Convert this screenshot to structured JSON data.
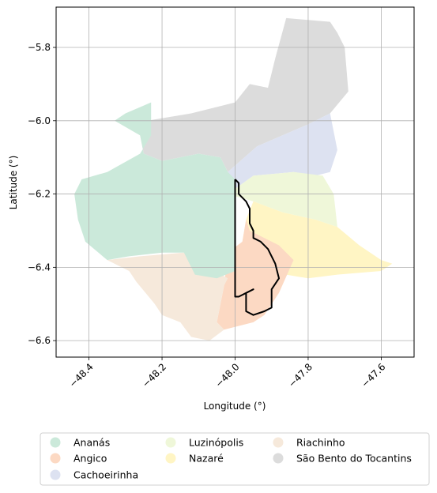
{
  "axes": {
    "xlabel": "Longitude (°)",
    "ylabel": "Latitude (°)",
    "xlim": [
      -48.49,
      -47.51
    ],
    "ylim": [
      -6.645,
      -5.69
    ],
    "x_ticks": [
      {
        "value": -48.4,
        "label": "−48.4"
      },
      {
        "value": -48.2,
        "label": "−48.2"
      },
      {
        "value": -48.0,
        "label": "−48.0"
      },
      {
        "value": -47.8,
        "label": "−47.8"
      },
      {
        "value": -47.6,
        "label": "−47.6"
      }
    ],
    "y_ticks": [
      {
        "value": -5.8,
        "label": "−5.8"
      },
      {
        "value": -6.0,
        "label": "−6.0"
      },
      {
        "value": -6.2,
        "label": "−6.2"
      },
      {
        "value": -6.4,
        "label": "−6.4"
      },
      {
        "value": -6.6,
        "label": "−6.6"
      }
    ],
    "grid": true
  },
  "legend": {
    "placement": "below",
    "items": [
      {
        "name": "Ananás",
        "color": "#cbe9da"
      },
      {
        "name": "Angico",
        "color": "#fcd9c3"
      },
      {
        "name": "Cachoeirinha",
        "color": "#dde2f1"
      },
      {
        "name": "Luzinópolis",
        "color": "#eff7d9"
      },
      {
        "name": "Nazaré",
        "color": "#fff5c4"
      },
      {
        "name": "Riachinho",
        "color": "#f6e9db"
      },
      {
        "name": "São Bento do Tocantins",
        "color": "#dcdcdc"
      }
    ]
  },
  "regions": [
    {
      "name": "São Bento do Tocantins",
      "color": "#dcdcdc",
      "lonlat": [
        [
          -47.86,
          -5.72
        ],
        [
          -47.74,
          -5.73
        ],
        [
          -47.72,
          -5.76
        ],
        [
          -47.7,
          -5.8
        ],
        [
          -47.69,
          -5.92
        ],
        [
          -47.74,
          -5.98
        ],
        [
          -47.8,
          -6.01
        ],
        [
          -47.94,
          -6.07
        ],
        [
          -48.02,
          -6.14
        ],
        [
          -48.04,
          -6.1
        ],
        [
          -48.1,
          -6.09
        ],
        [
          -48.2,
          -6.11
        ],
        [
          -48.25,
          -6.09
        ],
        [
          -48.26,
          -6.04
        ],
        [
          -48.24,
          -6.0
        ],
        [
          -48.12,
          -5.98
        ],
        [
          -48.04,
          -5.96
        ],
        [
          -48.0,
          -5.95
        ],
        [
          -47.96,
          -5.9
        ],
        [
          -47.91,
          -5.91
        ],
        [
          -47.89,
          -5.83
        ]
      ]
    },
    {
      "name": "Cachoeirinha",
      "color": "#dde2f1",
      "lonlat": [
        [
          -47.94,
          -6.07
        ],
        [
          -47.8,
          -6.01
        ],
        [
          -47.74,
          -5.98
        ],
        [
          -47.72,
          -6.08
        ],
        [
          -47.74,
          -6.14
        ],
        [
          -47.78,
          -6.15
        ],
        [
          -47.84,
          -6.14
        ],
        [
          -47.95,
          -6.15
        ],
        [
          -48.02,
          -6.2
        ],
        [
          -48.02,
          -6.14
        ]
      ]
    },
    {
      "name": "Luzinópolis",
      "color": "#eff7d9",
      "lonlat": [
        [
          -48.02,
          -6.2
        ],
        [
          -47.95,
          -6.15
        ],
        [
          -47.84,
          -6.14
        ],
        [
          -47.76,
          -6.15
        ],
        [
          -47.73,
          -6.2
        ],
        [
          -47.72,
          -6.29
        ],
        [
          -47.78,
          -6.27
        ],
        [
          -47.87,
          -6.25
        ],
        [
          -47.95,
          -6.22
        ]
      ]
    },
    {
      "name": "Nazaré",
      "color": "#fff5c4",
      "lonlat": [
        [
          -47.95,
          -6.22
        ],
        [
          -47.87,
          -6.25
        ],
        [
          -47.78,
          -6.27
        ],
        [
          -47.72,
          -6.29
        ],
        [
          -47.66,
          -6.34
        ],
        [
          -47.6,
          -6.38
        ],
        [
          -47.57,
          -6.39
        ],
        [
          -47.6,
          -6.41
        ],
        [
          -47.72,
          -6.42
        ],
        [
          -47.8,
          -6.43
        ],
        [
          -47.86,
          -6.42
        ],
        [
          -47.92,
          -6.42
        ],
        [
          -47.98,
          -6.33
        ],
        [
          -47.97,
          -6.27
        ]
      ]
    },
    {
      "name": "Angico",
      "color": "#fcd9c3",
      "lonlat": [
        [
          -47.97,
          -6.27
        ],
        [
          -47.98,
          -6.33
        ],
        [
          -48.02,
          -6.36
        ],
        [
          -48.03,
          -6.45
        ],
        [
          -48.05,
          -6.55
        ],
        [
          -48.03,
          -6.57
        ],
        [
          -47.95,
          -6.55
        ],
        [
          -47.92,
          -6.53
        ],
        [
          -47.88,
          -6.47
        ],
        [
          -47.84,
          -6.38
        ],
        [
          -47.88,
          -6.34
        ],
        [
          -47.92,
          -6.32
        ],
        [
          -47.96,
          -6.3
        ]
      ]
    },
    {
      "name": "Riachinho",
      "color": "#f6e9db",
      "lonlat": [
        [
          -48.35,
          -6.38
        ],
        [
          -48.26,
          -6.37
        ],
        [
          -48.14,
          -6.36
        ],
        [
          -48.02,
          -6.43
        ],
        [
          -48.03,
          -6.45
        ],
        [
          -48.05,
          -6.55
        ],
        [
          -48.03,
          -6.57
        ],
        [
          -48.07,
          -6.6
        ],
        [
          -48.12,
          -6.59
        ],
        [
          -48.15,
          -6.55
        ],
        [
          -48.2,
          -6.53
        ],
        [
          -48.22,
          -6.5
        ],
        [
          -48.27,
          -6.44
        ],
        [
          -48.29,
          -6.41
        ]
      ]
    },
    {
      "name": "Ananás",
      "color": "#cbe9da",
      "lonlat": [
        [
          -48.33,
          -6.0
        ],
        [
          -48.3,
          -5.98
        ],
        [
          -48.23,
          -5.95
        ],
        [
          -48.23,
          -6.04
        ],
        [
          -48.26,
          -6.09
        ],
        [
          -48.35,
          -6.14
        ],
        [
          -48.42,
          -6.16
        ],
        [
          -48.44,
          -6.2
        ],
        [
          -48.43,
          -6.27
        ],
        [
          -48.41,
          -6.33
        ],
        [
          -48.35,
          -6.38
        ],
        [
          -48.29,
          -6.37
        ],
        [
          -48.2,
          -6.36
        ],
        [
          -48.14,
          -6.36
        ],
        [
          -48.11,
          -6.42
        ],
        [
          -48.05,
          -6.43
        ],
        [
          -48.0,
          -6.41
        ],
        [
          -48.0,
          -6.16
        ],
        [
          -48.02,
          -6.14
        ],
        [
          -48.04,
          -6.1
        ],
        [
          -48.1,
          -6.09
        ],
        [
          -48.2,
          -6.11
        ],
        [
          -48.25,
          -6.09
        ],
        [
          -48.26,
          -6.04
        ]
      ]
    }
  ],
  "boundary": {
    "color": "#000000",
    "lonlat": [
      [
        -48.0,
        -6.16
      ],
      [
        -47.99,
        -6.17
      ],
      [
        -47.99,
        -6.2
      ],
      [
        -47.97,
        -6.22
      ],
      [
        -47.96,
        -6.24
      ],
      [
        -47.96,
        -6.28
      ],
      [
        -47.95,
        -6.3
      ],
      [
        -47.95,
        -6.32
      ],
      [
        -47.93,
        -6.33
      ],
      [
        -47.91,
        -6.35
      ],
      [
        -47.9,
        -6.37
      ],
      [
        -47.89,
        -6.39
      ],
      [
        -47.88,
        -6.43
      ],
      [
        -47.9,
        -6.46
      ],
      [
        -47.9,
        -6.49
      ],
      [
        -47.9,
        -6.51
      ],
      [
        -47.92,
        -6.52
      ],
      [
        -47.95,
        -6.53
      ],
      [
        -47.97,
        -6.52
      ],
      [
        -47.97,
        -6.47
      ],
      [
        -47.95,
        -6.46
      ],
      [
        -47.99,
        -6.48
      ],
      [
        -48.0,
        -6.48
      ],
      [
        -48.0,
        -6.16
      ]
    ]
  }
}
